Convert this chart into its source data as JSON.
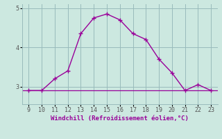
{
  "x": [
    9,
    10,
    11,
    12,
    13,
    14,
    15,
    16,
    17,
    18,
    19,
    20,
    21,
    22,
    23
  ],
  "y": [
    2.9,
    2.9,
    3.2,
    3.4,
    4.35,
    4.75,
    4.85,
    4.7,
    4.35,
    4.2,
    3.7,
    3.35,
    2.9,
    3.05,
    2.9
  ],
  "hline_y": 2.9,
  "line_color": "#990099",
  "bg_color": "#cce8e0",
  "grid_color": "#99bbbb",
  "xlabel": "Windchill (Refroidissement éolien,°C)",
  "xlabel_color": "#990099",
  "tick_color": "#555555",
  "ylim": [
    2.55,
    5.1
  ],
  "xlim": [
    8.5,
    23.5
  ],
  "yticks": [
    3,
    4,
    5
  ],
  "xticks": [
    9,
    10,
    11,
    12,
    13,
    14,
    15,
    16,
    17,
    18,
    19,
    20,
    21,
    22,
    23
  ],
  "figsize": [
    3.2,
    2.0
  ],
  "dpi": 100
}
